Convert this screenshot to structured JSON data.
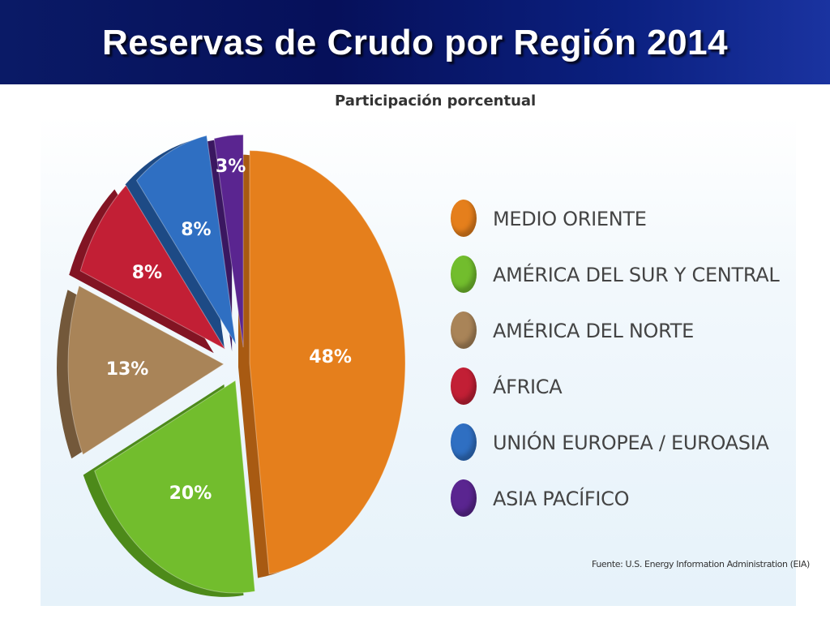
{
  "slide": {
    "title": "Reservas de Crudo por Región 2014"
  },
  "chart_data": {
    "type": "pie",
    "title": "Participación porcentual",
    "source": "Fuente: U.S. Energy Information Administration (EIA)",
    "legend_position": "right",
    "slices": [
      {
        "label": "MEDIO ORIENTE",
        "value": 48,
        "display": "48%",
        "color": "#e57f1c",
        "side_color": "#a85a12"
      },
      {
        "label": "AMÉRICA DEL SUR Y CENTRAL",
        "value": 20,
        "display": "20%",
        "color": "#72bd2d",
        "side_color": "#4d8a1a"
      },
      {
        "label": "AMÉRICA DEL NORTE",
        "value": 13,
        "display": "13%",
        "color": "#a98458",
        "side_color": "#73583a"
      },
      {
        "label": "ÁFRICA",
        "value": 8,
        "display": "8%",
        "color": "#c21f35",
        "side_color": "#821423"
      },
      {
        "label": "UNIÓN EUROPEA / EUROASIA",
        "value": 8,
        "display": "8%",
        "color": "#2f6fc2",
        "side_color": "#1d4a85"
      },
      {
        "label": "ASIA PACÍFICO",
        "value": 3,
        "display": "3%",
        "color": "#5a2590",
        "side_color": "#3a1760"
      }
    ]
  }
}
